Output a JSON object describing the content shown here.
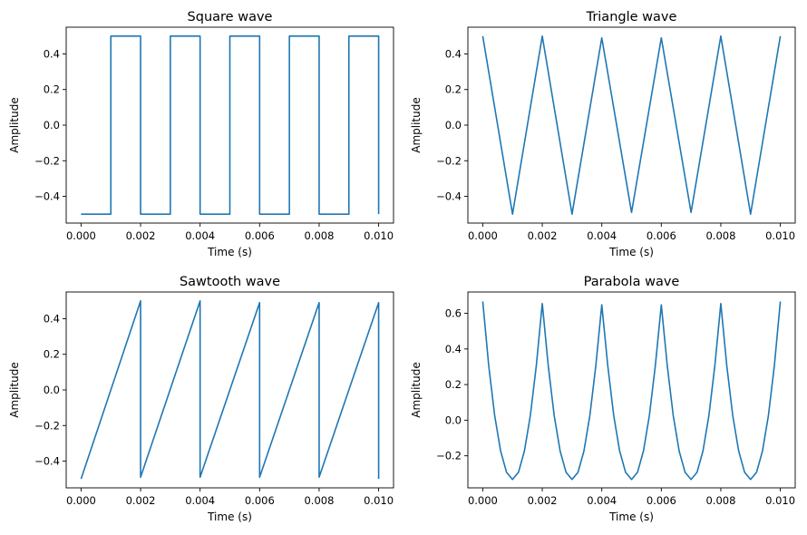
{
  "figure": {
    "background": "#ffffff",
    "line_color": "#1f77b4"
  },
  "chart_data": [
    {
      "type": "line",
      "title": "Square wave",
      "xlabel": "Time (s)",
      "ylabel": "Amplitude",
      "xlim": [
        -0.0005,
        0.0105
      ],
      "ylim": [
        -0.55,
        0.55
      ],
      "xticks": [
        0.0,
        0.002,
        0.004,
        0.006,
        0.008,
        0.01
      ],
      "xtick_labels": [
        "0.000",
        "0.002",
        "0.004",
        "0.006",
        "0.008",
        "0.010"
      ],
      "yticks": [
        -0.4,
        -0.2,
        0.0,
        0.2,
        0.4
      ],
      "ytick_labels": [
        "−0.4",
        "−0.2",
        "0.0",
        "0.2",
        "0.4"
      ],
      "grid": false,
      "series": [
        {
          "x": [
            0.0,
            0.001,
            0.001,
            0.002,
            0.002,
            0.003,
            0.003,
            0.004,
            0.004,
            0.005,
            0.005,
            0.006,
            0.006,
            0.007,
            0.007,
            0.008,
            0.008,
            0.009,
            0.009,
            0.01,
            0.01
          ],
          "y": [
            -0.5,
            -0.5,
            0.5,
            0.5,
            -0.5,
            -0.5,
            0.5,
            0.5,
            -0.5,
            -0.5,
            0.5,
            0.5,
            -0.5,
            -0.5,
            0.5,
            0.5,
            -0.5,
            -0.5,
            0.5,
            0.5,
            -0.5
          ]
        }
      ]
    },
    {
      "type": "line",
      "title": "Triangle wave",
      "xlabel": "Time (s)",
      "ylabel": "Amplitude",
      "xlim": [
        -0.0005,
        0.0105
      ],
      "ylim": [
        -0.55,
        0.55
      ],
      "xticks": [
        0.0,
        0.002,
        0.004,
        0.006,
        0.008,
        0.01
      ],
      "xtick_labels": [
        "0.000",
        "0.002",
        "0.004",
        "0.006",
        "0.008",
        "0.010"
      ],
      "yticks": [
        -0.4,
        -0.2,
        0.0,
        0.2,
        0.4
      ],
      "ytick_labels": [
        "−0.4",
        "−0.2",
        "0.0",
        "0.2",
        "0.4"
      ],
      "grid": false,
      "series": [
        {
          "x": [
            0.0,
            0.001,
            0.002,
            0.003,
            0.004,
            0.005,
            0.006,
            0.007,
            0.008,
            0.009,
            0.01
          ],
          "y": [
            0.5,
            -0.5,
            0.5,
            -0.5,
            0.49,
            -0.49,
            0.49,
            -0.49,
            0.5,
            -0.5,
            0.5
          ]
        }
      ]
    },
    {
      "type": "line",
      "title": "Sawtooth wave",
      "xlabel": "Time (s)",
      "ylabel": "Amplitude",
      "xlim": [
        -0.0005,
        0.0105
      ],
      "ylim": [
        -0.55,
        0.55
      ],
      "xticks": [
        0.0,
        0.002,
        0.004,
        0.006,
        0.008,
        0.01
      ],
      "xtick_labels": [
        "0.000",
        "0.002",
        "0.004",
        "0.006",
        "0.008",
        "0.010"
      ],
      "yticks": [
        -0.4,
        -0.2,
        0.0,
        0.2,
        0.4
      ],
      "ytick_labels": [
        "−0.4",
        "−0.2",
        "0.0",
        "0.2",
        "0.4"
      ],
      "grid": false,
      "series": [
        {
          "x": [
            0.0,
            0.002,
            0.002,
            0.004,
            0.004,
            0.006,
            0.006,
            0.008,
            0.008,
            0.01,
            0.01
          ],
          "y": [
            -0.5,
            0.5,
            -0.49,
            0.5,
            -0.49,
            0.49,
            -0.49,
            0.49,
            -0.49,
            0.49,
            -0.5
          ]
        }
      ]
    },
    {
      "type": "line",
      "title": "Parabola wave",
      "xlabel": "Time (s)",
      "ylabel": "Amplitude",
      "xlim": [
        -0.0005,
        0.0105
      ],
      "ylim": [
        -0.38,
        0.72
      ],
      "xticks": [
        0.0,
        0.002,
        0.004,
        0.006,
        0.008,
        0.01
      ],
      "xtick_labels": [
        "0.000",
        "0.002",
        "0.004",
        "0.006",
        "0.008",
        "0.010"
      ],
      "yticks": [
        -0.2,
        0.0,
        0.2,
        0.4,
        0.6
      ],
      "ytick_labels": [
        "−0.2",
        "0.0",
        "0.2",
        "0.4",
        "0.6"
      ],
      "grid": false,
      "series": [
        {
          "x": [
            0.0,
            0.0002,
            0.0004,
            0.0006,
            0.0008,
            0.001,
            0.0012,
            0.0014,
            0.0016,
            0.0018,
            0.002,
            0.0022,
            0.0024,
            0.0026,
            0.0028,
            0.003,
            0.0032,
            0.0034,
            0.0036,
            0.0038,
            0.004,
            0.0042,
            0.0044,
            0.0046,
            0.0048,
            0.005,
            0.0052,
            0.0054,
            0.0056,
            0.0058,
            0.006,
            0.0062,
            0.0064,
            0.0066,
            0.0068,
            0.007,
            0.0072,
            0.0074,
            0.0076,
            0.0078,
            0.008,
            0.0082,
            0.0084,
            0.0086,
            0.0088,
            0.009,
            0.0092,
            0.0094,
            0.0096,
            0.0098,
            0.01
          ],
          "y": [
            0.667,
            0.307,
            0.027,
            -0.173,
            -0.293,
            -0.333,
            -0.293,
            -0.173,
            0.027,
            0.307,
            0.655,
            0.307,
            0.027,
            -0.173,
            -0.293,
            -0.333,
            -0.293,
            -0.173,
            0.027,
            0.307,
            0.648,
            0.307,
            0.027,
            -0.173,
            -0.293,
            -0.333,
            -0.293,
            -0.173,
            0.027,
            0.307,
            0.648,
            0.307,
            0.027,
            -0.173,
            -0.293,
            -0.333,
            -0.293,
            -0.173,
            0.027,
            0.307,
            0.655,
            0.307,
            0.027,
            -0.173,
            -0.293,
            -0.333,
            -0.293,
            -0.173,
            0.027,
            0.307,
            0.667
          ]
        }
      ]
    }
  ]
}
